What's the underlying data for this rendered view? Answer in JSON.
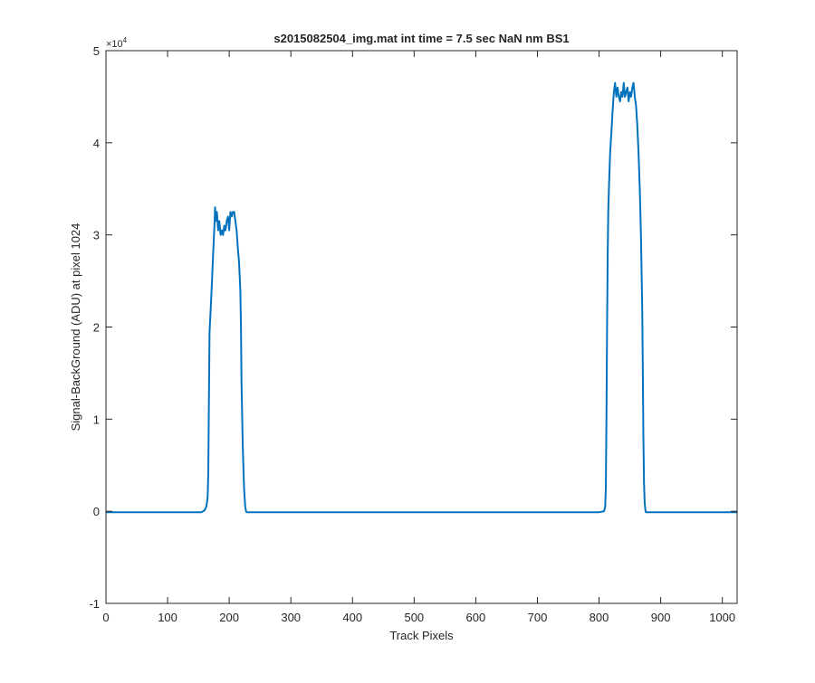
{
  "chart_data": {
    "type": "line",
    "title": "s2015082504_img.mat int time = 7.5 sec  NaN nm BS1",
    "xlabel": "Track Pixels",
    "ylabel": "Signal-BackGround (ADU) at pixel 1024",
    "y_exponent_label": "×10",
    "y_exponent_power": "4",
    "xlim": [
      0,
      1024
    ],
    "ylim": [
      -10000,
      50000
    ],
    "x_ticks": [
      0,
      100,
      200,
      300,
      400,
      500,
      600,
      700,
      800,
      900,
      1000
    ],
    "x_tick_labels": [
      "0",
      "100",
      "200",
      "300",
      "400",
      "500",
      "600",
      "700",
      "800",
      "900",
      "1000"
    ],
    "y_ticks": [
      -10000,
      0,
      10000,
      20000,
      30000,
      40000,
      50000
    ],
    "y_tick_labels": [
      "-1",
      "0",
      "1",
      "2",
      "3",
      "4",
      "5"
    ],
    "grid": false,
    "line_color": "#0072BD",
    "series": [
      {
        "x": [
          0,
          100,
          155,
          160,
          163,
          165,
          166,
          167,
          168,
          170,
          172,
          174,
          176,
          177,
          178,
          180,
          182,
          184,
          186,
          188,
          190,
          192,
          194,
          196,
          198,
          200,
          202,
          204,
          206,
          208,
          210,
          212,
          214,
          216,
          218,
          219,
          220,
          222,
          224,
          226,
          227,
          228,
          230,
          235,
          300,
          400,
          500,
          600,
          700,
          800,
          808,
          810,
          811,
          812,
          813,
          814,
          815,
          816,
          818,
          820,
          822,
          824,
          826,
          828,
          830,
          832,
          834,
          836,
          838,
          840,
          842,
          844,
          846,
          848,
          850,
          852,
          854,
          856,
          858,
          860,
          862,
          864,
          866,
          868,
          870,
          871,
          872,
          873,
          874,
          875,
          876,
          878,
          880,
          900,
          1024
        ],
        "y": [
          -100,
          -100,
          -100,
          100,
          500,
          1500,
          4000,
          12000,
          19500,
          22000,
          25000,
          28000,
          31000,
          33000,
          31500,
          32500,
          30500,
          31500,
          30000,
          30500,
          30000,
          31000,
          30500,
          31500,
          32000,
          30500,
          32500,
          32000,
          32500,
          32500,
          31500,
          30500,
          28500,
          27000,
          24000,
          20000,
          14000,
          7000,
          2500,
          500,
          100,
          -100,
          -100,
          -100,
          -100,
          -100,
          -100,
          -100,
          -100,
          -100,
          0,
          500,
          2500,
          10000,
          20000,
          28000,
          32500,
          35000,
          39000,
          41000,
          43500,
          45500,
          46500,
          45000,
          46000,
          45000,
          44500,
          45500,
          45000,
          46500,
          45000,
          45500,
          46000,
          44500,
          45500,
          45000,
          46000,
          46500,
          45000,
          44000,
          42000,
          39000,
          35000,
          30000,
          22000,
          15000,
          8000,
          3000,
          1000,
          200,
          -100,
          -100,
          -100,
          -100,
          -100
        ]
      }
    ]
  }
}
